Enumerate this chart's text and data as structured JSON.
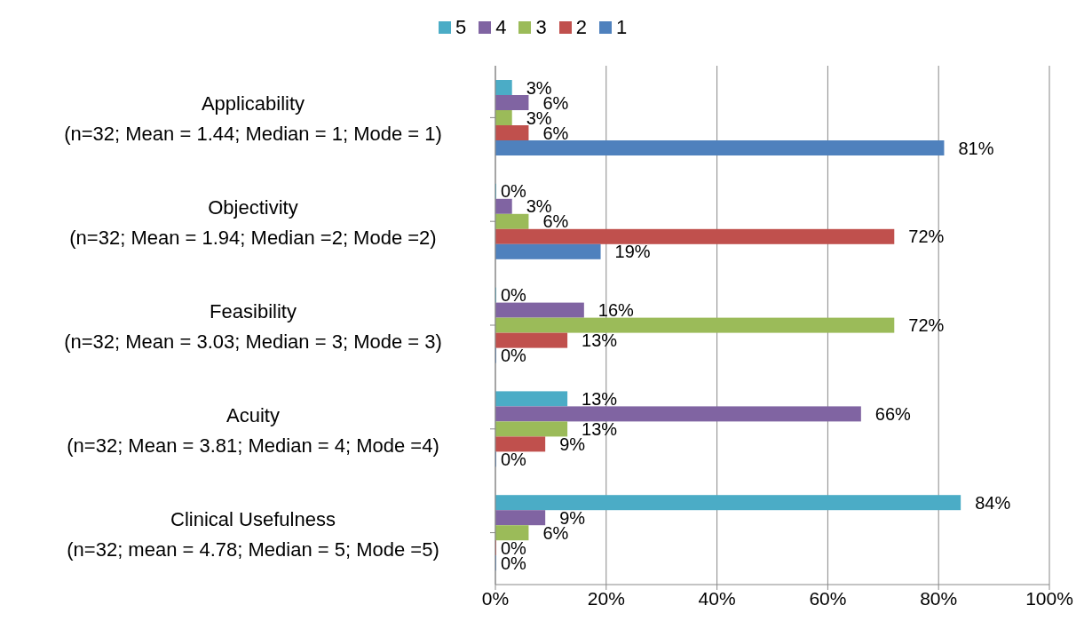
{
  "chart_data": {
    "type": "bar",
    "orientation": "horizontal",
    "categories": [
      "Applicability\n(n=32; Mean = 1.44; Median = 1; Mode = 1)",
      "Objectivity\n(n=32; Mean = 1.94; Median =2; Mode =2)",
      "Feasibility\n(n=32; Mean = 3.03; Median = 3; Mode = 3)",
      "Acuity\n(n=32; Mean = 3.81; Median = 4; Mode =4)",
      "Clinical Usefulness\n(n=32; mean = 4.78; Median = 5; Mode =5)"
    ],
    "series": [
      {
        "name": "5",
        "color": "#4bacc6",
        "values": [
          3,
          0,
          0,
          13,
          84
        ],
        "value_labels": [
          "3%",
          "0%",
          "0%",
          "13%",
          "84%"
        ]
      },
      {
        "name": "4",
        "color": "#8064a2",
        "values": [
          6,
          3,
          16,
          66,
          9
        ],
        "value_labels": [
          "6%",
          "3%",
          "16%",
          "66%",
          "9%"
        ]
      },
      {
        "name": "3",
        "color": "#9bbb59",
        "values": [
          3,
          6,
          72,
          13,
          6
        ],
        "value_labels": [
          "3%",
          "6%",
          "72%",
          "13%",
          "6%"
        ]
      },
      {
        "name": "2",
        "color": "#c0504d",
        "values": [
          6,
          72,
          13,
          9,
          0
        ],
        "value_labels": [
          "6%",
          "72%",
          "13%",
          "9%",
          "0%"
        ]
      },
      {
        "name": "1",
        "color": "#4f81bd",
        "values": [
          81,
          19,
          0,
          0,
          0
        ],
        "value_labels": [
          "81%",
          "19%",
          "0%",
          "0%",
          "0%"
        ]
      }
    ],
    "xlim": [
      0,
      100
    ],
    "xticks": [
      {
        "value": 0,
        "label": "0%"
      },
      {
        "value": 20,
        "label": "20%"
      },
      {
        "value": 40,
        "label": "40%"
      },
      {
        "value": 60,
        "label": "60%"
      },
      {
        "value": 80,
        "label": "80%"
      },
      {
        "value": 100,
        "label": "100%"
      }
    ],
    "grid": "x",
    "legend": "top"
  }
}
